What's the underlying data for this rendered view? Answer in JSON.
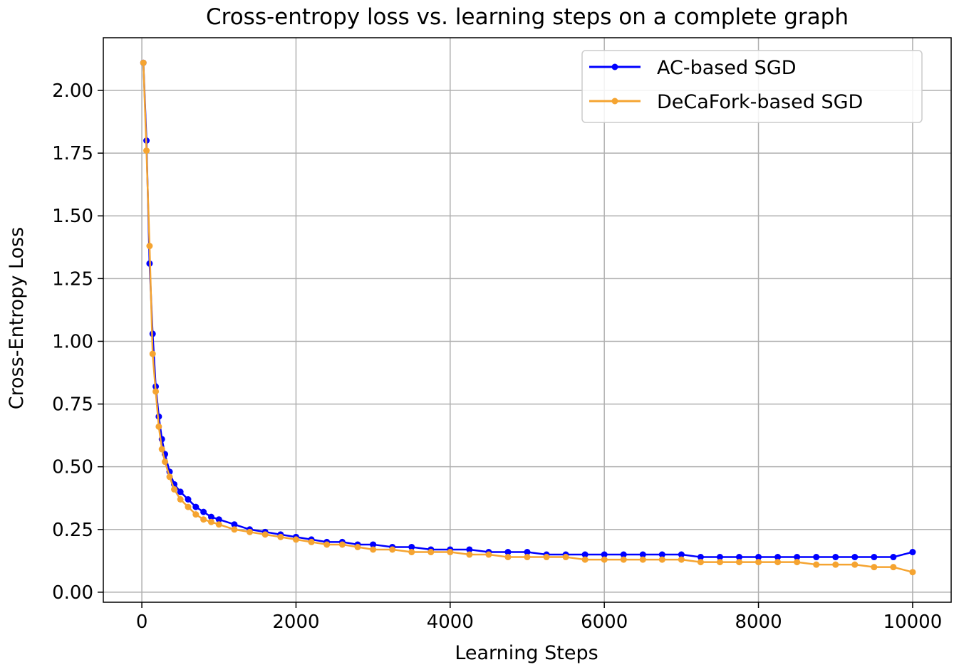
{
  "chart_data": {
    "type": "line",
    "title": "Cross-entropy loss vs. learning steps on a complete graph",
    "xlabel": "Learning Steps",
    "ylabel": "Cross-Entropy Loss",
    "xlim": [
      -500,
      10500
    ],
    "ylim": [
      -0.04,
      2.21
    ],
    "xticks": [
      0,
      2000,
      4000,
      6000,
      8000,
      10000
    ],
    "xtick_labels": [
      "0",
      "2000",
      "4000",
      "6000",
      "8000",
      "10000"
    ],
    "yticks": [
      0.0,
      0.25,
      0.5,
      0.75,
      1.0,
      1.25,
      1.5,
      1.75,
      2.0
    ],
    "ytick_labels": [
      "0.00",
      "0.25",
      "0.50",
      "0.75",
      "1.00",
      "1.25",
      "1.50",
      "1.75",
      "2.00"
    ],
    "grid": true,
    "legend_position": "top-right",
    "series": [
      {
        "name": "AC-based SGD",
        "color": "#0000ff",
        "x": [
          20,
          60,
          100,
          140,
          180,
          220,
          260,
          300,
          360,
          420,
          500,
          600,
          700,
          800,
          900,
          1000,
          1200,
          1400,
          1600,
          1800,
          2000,
          2200,
          2400,
          2600,
          2800,
          3000,
          3250,
          3500,
          3750,
          4000,
          4250,
          4500,
          4750,
          5000,
          5250,
          5500,
          5750,
          6000,
          6250,
          6500,
          6750,
          7000,
          7250,
          7500,
          7750,
          8000,
          8250,
          8500,
          8750,
          9000,
          9250,
          9500,
          9750,
          10000
        ],
        "y": [
          2.11,
          1.8,
          1.31,
          1.03,
          0.82,
          0.7,
          0.61,
          0.55,
          0.48,
          0.43,
          0.4,
          0.37,
          0.34,
          0.32,
          0.3,
          0.29,
          0.27,
          0.25,
          0.24,
          0.23,
          0.22,
          0.21,
          0.2,
          0.2,
          0.19,
          0.19,
          0.18,
          0.18,
          0.17,
          0.17,
          0.17,
          0.16,
          0.16,
          0.16,
          0.15,
          0.15,
          0.15,
          0.15,
          0.15,
          0.15,
          0.15,
          0.15,
          0.14,
          0.14,
          0.14,
          0.14,
          0.14,
          0.14,
          0.14,
          0.14,
          0.14,
          0.14,
          0.14,
          0.16
        ]
      },
      {
        "name": "DeCaFork-based SGD",
        "color": "#f5a431",
        "x": [
          20,
          60,
          100,
          140,
          180,
          220,
          260,
          300,
          360,
          420,
          500,
          600,
          700,
          800,
          900,
          1000,
          1200,
          1400,
          1600,
          1800,
          2000,
          2200,
          2400,
          2600,
          2800,
          3000,
          3250,
          3500,
          3750,
          4000,
          4250,
          4500,
          4750,
          5000,
          5250,
          5500,
          5750,
          6000,
          6250,
          6500,
          6750,
          7000,
          7250,
          7500,
          7750,
          8000,
          8250,
          8500,
          8750,
          9000,
          9250,
          9500,
          9750,
          10000
        ],
        "y": [
          2.11,
          1.76,
          1.38,
          0.95,
          0.8,
          0.66,
          0.57,
          0.52,
          0.46,
          0.41,
          0.37,
          0.34,
          0.31,
          0.29,
          0.28,
          0.27,
          0.25,
          0.24,
          0.23,
          0.22,
          0.21,
          0.2,
          0.19,
          0.19,
          0.18,
          0.17,
          0.17,
          0.16,
          0.16,
          0.16,
          0.15,
          0.15,
          0.14,
          0.14,
          0.14,
          0.14,
          0.13,
          0.13,
          0.13,
          0.13,
          0.13,
          0.13,
          0.12,
          0.12,
          0.12,
          0.12,
          0.12,
          0.12,
          0.11,
          0.11,
          0.11,
          0.1,
          0.1,
          0.08
        ]
      }
    ]
  }
}
